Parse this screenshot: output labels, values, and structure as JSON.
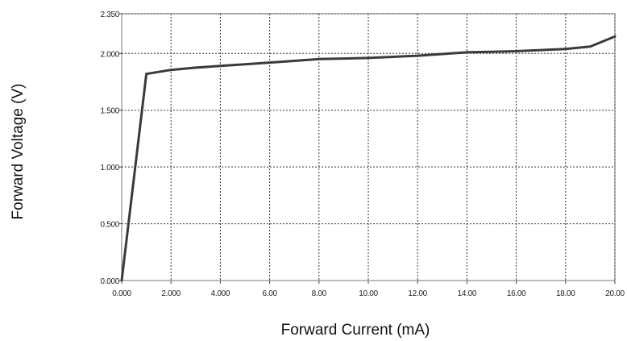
{
  "chart_data": {
    "type": "line",
    "xlabel": "Forward Current (mA)",
    "ylabel": "Forward Voltage (V)",
    "xlim": [
      0,
      20
    ],
    "ylim": [
      0,
      2.35
    ],
    "x_ticks": [
      0,
      2,
      4,
      6,
      8,
      10,
      12,
      14,
      16,
      18,
      20
    ],
    "x_tick_labels": [
      "0.000",
      "2.000",
      "4.000",
      "6.00",
      "8.00",
      "10.00",
      "12.00",
      "14.00",
      "16.00",
      "18.00",
      "20.00"
    ],
    "y_ticks": [
      0,
      0.5,
      1.0,
      1.5,
      2.0,
      2.35
    ],
    "y_tick_labels": [
      "0.000",
      "0.500",
      "1.000",
      "1.500",
      "2.000",
      "2.350"
    ],
    "grid": true,
    "series": [
      {
        "x": [
          0,
          1,
          2,
          3,
          4,
          5,
          6,
          7,
          8,
          9,
          10,
          11,
          12,
          13,
          14,
          15,
          16,
          17,
          18,
          19,
          20
        ],
        "y": [
          0,
          1.82,
          1.855,
          1.875,
          1.89,
          1.905,
          1.92,
          1.935,
          1.95,
          1.955,
          1.96,
          1.97,
          1.98,
          1.995,
          2.01,
          2.015,
          2.02,
          2.03,
          2.04,
          2.06,
          2.15
        ]
      }
    ],
    "colors": {
      "line": "#3a3a3a",
      "grid": "#333333",
      "frame": "#777777"
    }
  }
}
